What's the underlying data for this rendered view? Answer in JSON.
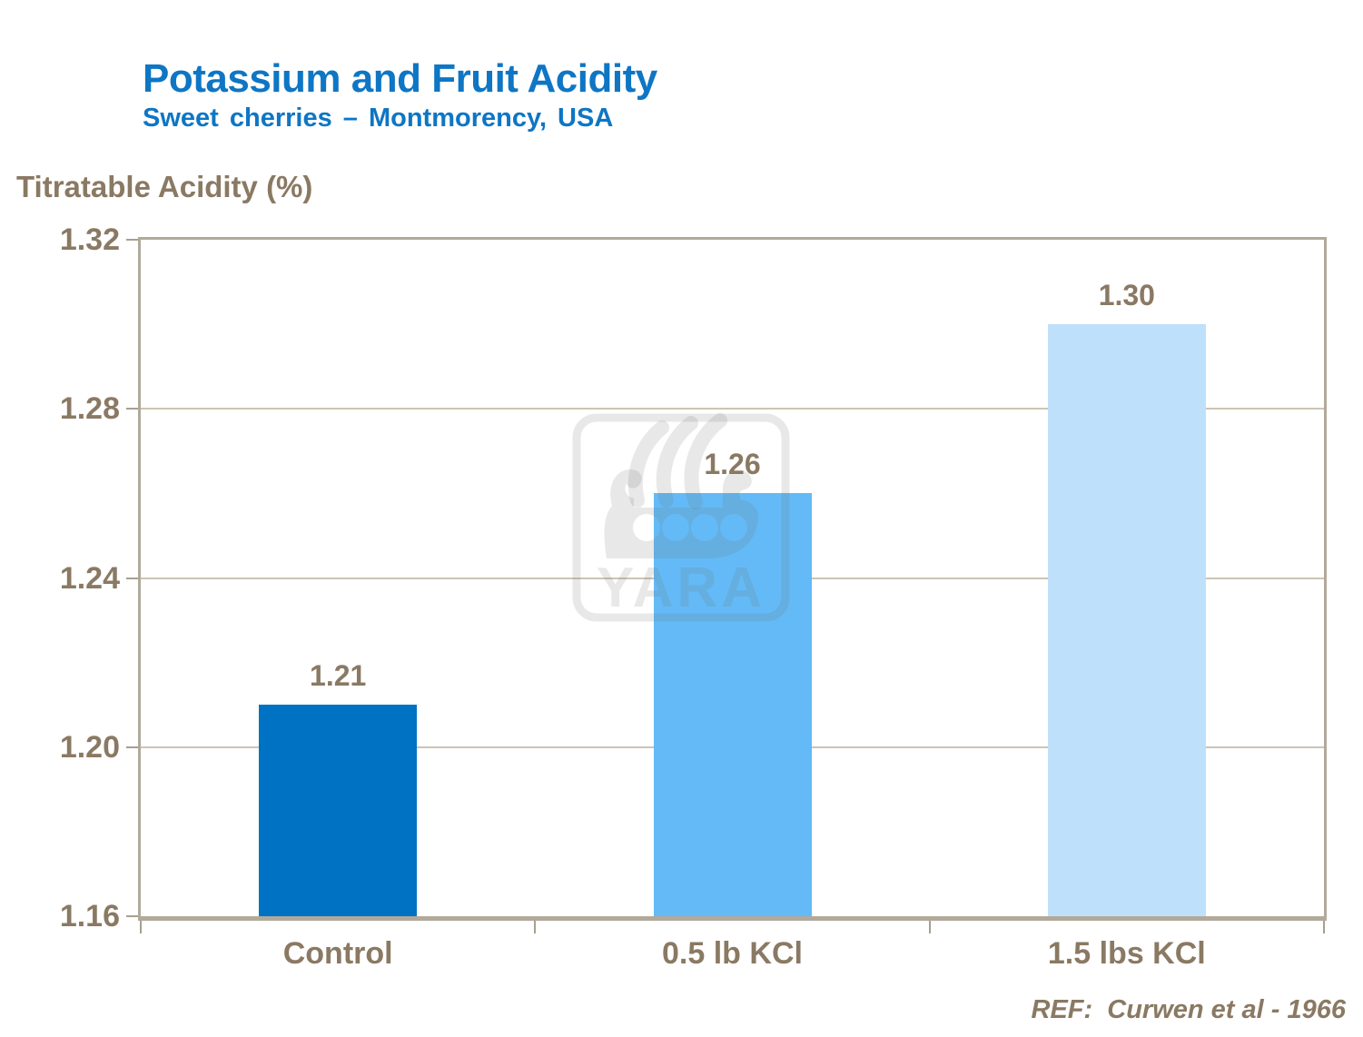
{
  "header": {
    "title": "Potassium and Fruit Acidity",
    "subtitle": "Sweet cherries – Montmorency, USA"
  },
  "footer": {
    "reference": "REF:  Curwen et al - 1966"
  },
  "watermark": {
    "label": "YARA"
  },
  "colors": {
    "title_blue": "#0e76c4",
    "text_brown": "#8a7963",
    "frame_tan": "#b2a99b",
    "gridline_tan": "#cdc4b4",
    "bar_dark_blue": "#0072c3",
    "bar_medium_blue": "#63baf6",
    "bar_light_blue": "#bfe0fa",
    "watermark_gray": "#e8e8e8"
  },
  "chart_data": {
    "type": "bar",
    "title": "Potassium and Fruit Acidity",
    "subtitle": "Sweet cherries – Montmorency, USA",
    "ylabel": "Titratable Acidity (%)",
    "xlabel": "",
    "categories": [
      "Control",
      "0.5 lb KCl",
      "1.5 lbs KCl"
    ],
    "values": [
      1.21,
      1.26,
      1.3
    ],
    "bar_labels": [
      "1.21",
      "1.26",
      "1.30"
    ],
    "bar_colors": [
      "#0072c3",
      "#63baf6",
      "#bfe0fa"
    ],
    "ylim": [
      1.16,
      1.32
    ],
    "yticks": [
      1.32,
      1.28,
      1.24,
      1.2,
      1.16
    ],
    "ytick_labels": [
      "1.32",
      "1.28",
      "1.24",
      "1.20",
      "1.16"
    ],
    "grid": "horizontal",
    "legend": "none",
    "annotation": "REF:  Curwen et al - 1966"
  }
}
